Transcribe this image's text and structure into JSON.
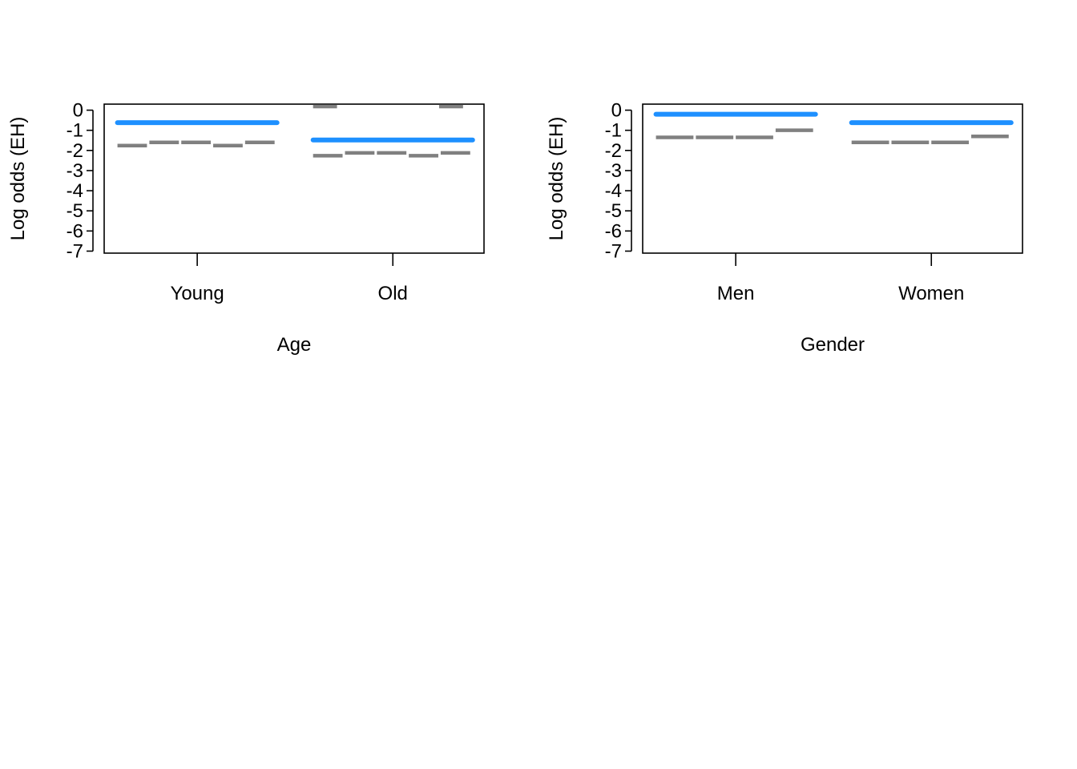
{
  "chart_data": [
    {
      "type": "line",
      "xlabel": "Age",
      "ylabel": "Log odds (EH)",
      "categories": [
        "Young",
        "Old"
      ],
      "yticks": [
        0,
        -1,
        -2,
        -3,
        -4,
        -5,
        -6,
        -7
      ],
      "ylim": [
        -7.1,
        0.3
      ],
      "grid": false,
      "main_series": {
        "color": "#1E90FF",
        "segments": [
          {
            "category": "Young",
            "y": -0.62
          },
          {
            "category": "Old",
            "y": -1.48
          }
        ]
      },
      "sub_series": {
        "color": "#808080",
        "segments": [
          {
            "category": "Young",
            "y": [
              -1.76,
              -1.6,
              -1.6,
              -1.76,
              -1.6
            ]
          },
          {
            "category": "Old",
            "y": [
              -2.26,
              -2.12,
              -2.12,
              -2.26,
              -2.12
            ]
          },
          {
            "category": "Old",
            "y": [
              0.18,
              0.18
            ]
          }
        ]
      }
    },
    {
      "type": "line",
      "xlabel": "Gender",
      "ylabel": "Log odds (EH)",
      "categories": [
        "Men",
        "Women"
      ],
      "yticks": [
        0,
        -1,
        -2,
        -3,
        -4,
        -5,
        -6,
        -7
      ],
      "ylim": [
        -7.1,
        0.3
      ],
      "grid": false,
      "main_series": {
        "color": "#1E90FF",
        "segments": [
          {
            "category": "Men",
            "y": -0.2
          },
          {
            "category": "Women",
            "y": -0.62
          }
        ]
      },
      "sub_series": {
        "color": "#808080",
        "segments": [
          {
            "category": "Men",
            "y": [
              -1.35,
              -1.35,
              -1.35,
              -1.0
            ]
          },
          {
            "category": "Women",
            "y": [
              -1.6,
              -1.6,
              -1.6,
              -1.3
            ]
          }
        ]
      }
    }
  ]
}
